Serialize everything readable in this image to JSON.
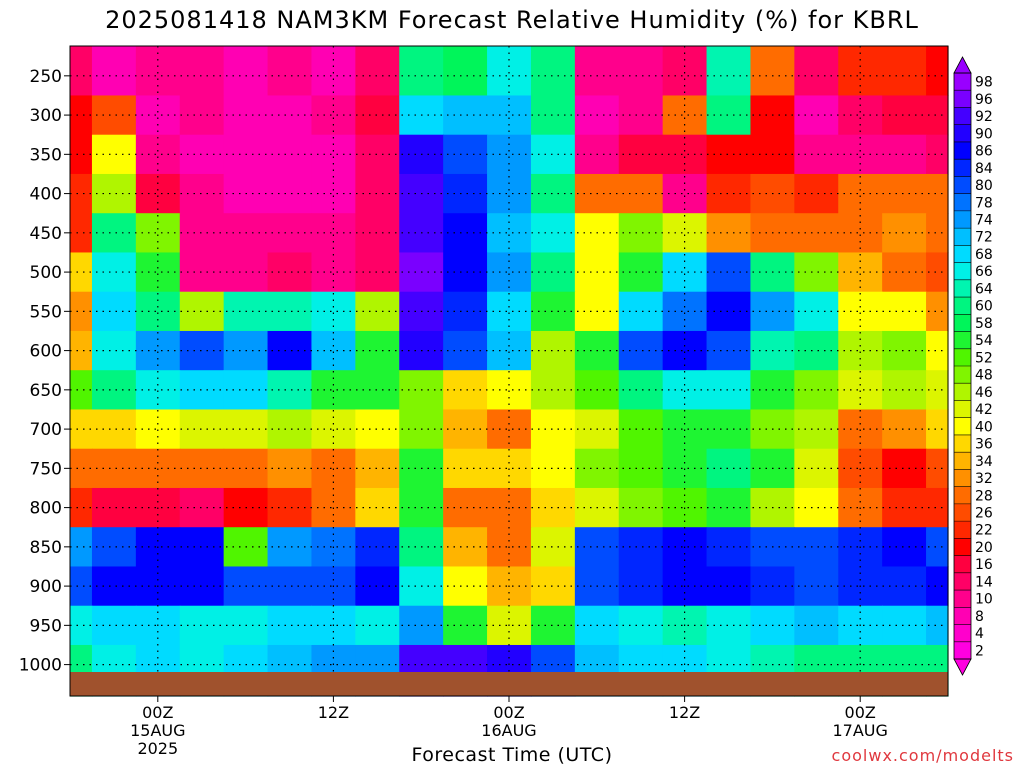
{
  "title": "2025081418 NAM3KM Forecast Relative Humidity (%) for KBRL",
  "xlabel": "Forecast Time (UTC)",
  "credit": "coolwx.com/modelts",
  "colors": {
    "ground": "#a0522d",
    "grid": "#000000",
    "credit": "#e0383e"
  },
  "chart_data": {
    "type": "heatmap",
    "title": "2025081418 NAM3KM Forecast Relative Humidity (%) for KBRL",
    "xlabel": "Forecast Time (UTC)",
    "ylabel": "",
    "x_hours": [
      0,
      3,
      6,
      9,
      12,
      15,
      18,
      21,
      24,
      27,
      30,
      33,
      36,
      39,
      42,
      45,
      48,
      51,
      54,
      57,
      60
    ],
    "xlim_hours": [
      0,
      60
    ],
    "x_ticks": [
      {
        "hour": 6,
        "lines": [
          "00Z",
          "15AUG",
          "2025"
        ]
      },
      {
        "hour": 18,
        "lines": [
          "12Z"
        ]
      },
      {
        "hour": 30,
        "lines": [
          "00Z",
          "16AUG"
        ]
      },
      {
        "hour": 42,
        "lines": [
          "12Z"
        ]
      },
      {
        "hour": 54,
        "lines": [
          "00Z",
          "17AUG"
        ]
      }
    ],
    "y_levels_hpa": [
      250,
      300,
      350,
      400,
      450,
      500,
      550,
      600,
      650,
      700,
      750,
      800,
      850,
      900,
      950,
      1000
    ],
    "y_tick_labels": [
      "250",
      "300",
      "350",
      "400",
      "450",
      "500",
      "550",
      "600",
      "650",
      "700",
      "750",
      "800",
      "850",
      "900",
      "950",
      "1000"
    ],
    "ylim_hpa": [
      212,
      1040
    ],
    "grid": true,
    "values_rh_percent": [
      [
        15,
        8,
        12,
        10,
        8,
        10,
        8,
        14,
        60,
        58,
        66,
        60,
        10,
        12,
        14,
        64,
        30,
        14,
        25,
        22,
        20
      ],
      [
        20,
        26,
        8,
        10,
        9,
        8,
        10,
        16,
        70,
        72,
        72,
        62,
        8,
        10,
        30,
        60,
        20,
        8,
        14,
        18,
        18
      ],
      [
        20,
        40,
        10,
        8,
        8,
        8,
        8,
        14,
        90,
        80,
        74,
        66,
        10,
        18,
        16,
        20,
        20,
        10,
        12,
        10,
        14
      ],
      [
        22,
        46,
        16,
        10,
        8,
        8,
        8,
        14,
        92,
        84,
        74,
        60,
        28,
        30,
        12,
        24,
        26,
        24,
        30,
        28,
        30
      ],
      [
        22,
        60,
        48,
        12,
        12,
        10,
        10,
        14,
        94,
        86,
        72,
        66,
        40,
        50,
        42,
        32,
        30,
        28,
        30,
        32,
        28
      ],
      [
        36,
        66,
        56,
        12,
        12,
        14,
        12,
        14,
        96,
        88,
        74,
        62,
        40,
        54,
        70,
        80,
        60,
        50,
        34,
        28,
        26
      ],
      [
        32,
        68,
        62,
        46,
        64,
        64,
        66,
        46,
        92,
        84,
        70,
        54,
        40,
        70,
        78,
        86,
        74,
        66,
        40,
        40,
        32
      ],
      [
        34,
        66,
        76,
        80,
        76,
        86,
        72,
        56,
        90,
        80,
        72,
        46,
        56,
        80,
        86,
        80,
        64,
        60,
        46,
        48,
        40
      ],
      [
        52,
        60,
        66,
        70,
        68,
        64,
        56,
        54,
        50,
        38,
        40,
        46,
        52,
        60,
        66,
        66,
        56,
        50,
        42,
        46,
        42
      ],
      [
        36,
        38,
        40,
        42,
        44,
        46,
        44,
        40,
        48,
        34,
        30,
        40,
        44,
        52,
        54,
        56,
        50,
        46,
        30,
        32,
        36
      ],
      [
        28,
        28,
        30,
        28,
        30,
        32,
        30,
        34,
        56,
        36,
        36,
        40,
        48,
        52,
        56,
        62,
        54,
        42,
        26,
        20,
        26
      ],
      [
        22,
        18,
        16,
        14,
        20,
        24,
        28,
        36,
        56,
        30,
        30,
        36,
        44,
        48,
        52,
        56,
        46,
        40,
        28,
        22,
        24
      ],
      [
        74,
        80,
        86,
        86,
        52,
        76,
        78,
        84,
        60,
        34,
        30,
        44,
        80,
        84,
        86,
        84,
        80,
        82,
        84,
        86,
        80
      ],
      [
        80,
        86,
        88,
        88,
        82,
        80,
        82,
        86,
        66,
        40,
        34,
        38,
        82,
        84,
        86,
        86,
        84,
        82,
        84,
        84,
        86
      ],
      [
        66,
        68,
        68,
        66,
        66,
        70,
        70,
        66,
        76,
        56,
        44,
        56,
        70,
        66,
        64,
        66,
        70,
        72,
        70,
        70,
        72
      ],
      [
        62,
        66,
        68,
        66,
        70,
        72,
        74,
        74,
        94,
        94,
        90,
        80,
        72,
        70,
        70,
        66,
        64,
        60,
        62,
        62,
        62
      ]
    ],
    "colorbar_labels": [
      98,
      96,
      92,
      90,
      86,
      84,
      80,
      78,
      74,
      72,
      68,
      66,
      64,
      60,
      58,
      54,
      52,
      48,
      46,
      42,
      40,
      36,
      34,
      32,
      28,
      26,
      22,
      20,
      16,
      14,
      10,
      8,
      4,
      2
    ],
    "colorbar_colors": [
      "#9900ff",
      "#7a00ff",
      "#4400ff",
      "#2200ff",
      "#0000ff",
      "#0026ff",
      "#004cff",
      "#0073ff",
      "#0099ff",
      "#00bfff",
      "#00dbff",
      "#00f0e6",
      "#00f5b0",
      "#00f580",
      "#00f55a",
      "#1ef532",
      "#50f500",
      "#80f500",
      "#b0f500",
      "#dcf500",
      "#ffff00",
      "#ffd800",
      "#ffb400",
      "#ff9000",
      "#ff6c00",
      "#ff4c00",
      "#ff2800",
      "#ff0000",
      "#ff0040",
      "#ff0066",
      "#ff008c",
      "#ff00b3",
      "#ff00cc",
      "#ff00e0"
    ]
  }
}
